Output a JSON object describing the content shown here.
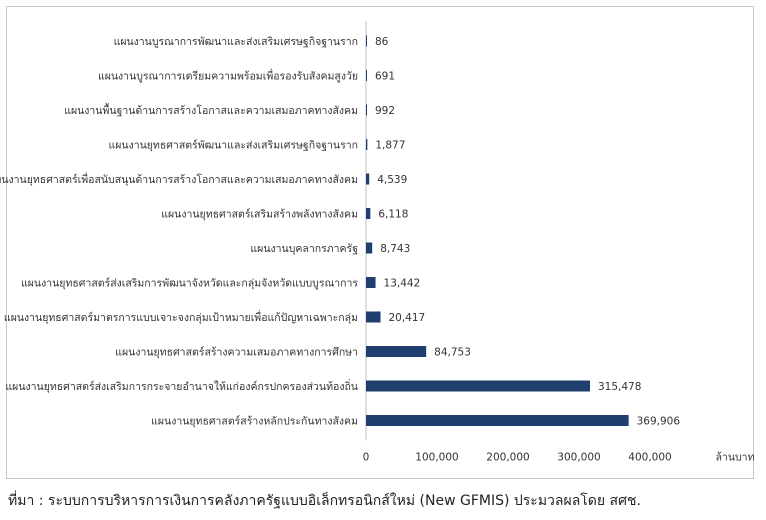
{
  "chart_data": {
    "type": "bar",
    "orientation": "horizontal",
    "categories": [
      "แผนงานบูรณาการพัฒนาและส่งเสริมเศรษฐกิจฐานราก",
      "แผนงานบูรณาการเตรียมความพร้อมเพื่อรองรับสังคมสูงวัย",
      "แผนงานพื้นฐานด้านการสร้างโอกาสและความเสมอภาคทางสังคม",
      "แผนงานยุทธศาสตร์พัฒนาและส่งเสริมเศรษฐกิจฐานราก",
      "แผนงานยุทธศาสตร์เพื่อสนับสนุนด้านการสร้างโอกาสและความเสมอภาคทางสังคม",
      "แผนงานยุทธศาสตร์เสริมสร้างพลังทางสังคม",
      "แผนงานบุคลากรภาครัฐ",
      "แผนงานยุทธศาสตร์ส่งเสริมการพัฒนาจังหวัดและกลุ่มจังหวัดแบบบูรณาการ",
      "แผนงานยุทธศาสตร์มาตรการแบบเจาะจงกลุ่มเป้าหมายเพื่อแก้ปัญหาเฉพาะกลุ่ม",
      "แผนงานยุทธศาสตร์สร้างความเสมอภาคทางการศึกษา",
      "แผนงานยุทธศาสตร์ส่งเสริมการกระจายอำนาจให้แก่องค์กรปกครองส่วนท้องถิ่น",
      "แผนงานยุทธศาสตร์สร้างหลักประกันทางสังคม"
    ],
    "values": [
      86,
      691,
      992,
      1877,
      4539,
      6118,
      8743,
      13442,
      20417,
      84753,
      315478,
      369906
    ],
    "value_labels": [
      "86",
      "691",
      "992",
      "1,877",
      "4,539",
      "6,118",
      "8,743",
      "13,442",
      "20,417",
      "84,753",
      "315,478",
      "369,906"
    ],
    "xlim": [
      0,
      400000
    ],
    "xticks": [
      "0",
      "100,000",
      "200,000",
      "300,000",
      "400,000"
    ],
    "xlabel": "ล้านบาท",
    "bar_color": "#1f3f6e",
    "axis_color": "#bfbfbf",
    "grid": false
  },
  "source_note": "ที่มา :  ระบบการบริหารการเงินการคลังภาครัฐแบบอิเล็กทรอนิกส์ใหม่ (New GFMIS) ประมวลผลโดย สศช."
}
